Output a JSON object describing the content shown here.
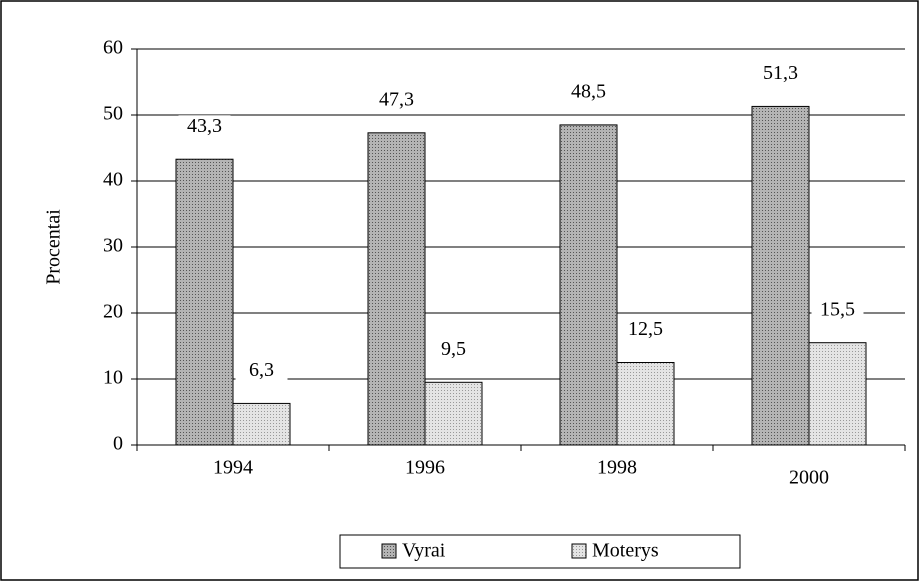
{
  "chart_data": {
    "type": "bar",
    "y_label": "Procentai",
    "categories": [
      "1994",
      "1996",
      "1998",
      "2000"
    ],
    "series": [
      {
        "name": "Vyrai",
        "color": "#b4b4b4",
        "values": [
          43.3,
          47.3,
          48.5,
          51.3
        ],
        "value_labels": [
          "43,3",
          "47,3",
          "48,5",
          "51,3"
        ]
      },
      {
        "name": "Moterys",
        "color": "#e4e4e4",
        "values": [
          6.3,
          9.5,
          12.5,
          15.5
        ],
        "value_labels": [
          "6,3",
          "9,5",
          "12,5",
          "15,5"
        ]
      }
    ],
    "ylim": [
      0,
      60
    ],
    "yticks": [
      0,
      10,
      20,
      30,
      40,
      50,
      60
    ],
    "grid": true,
    "legend": "bottom"
  }
}
